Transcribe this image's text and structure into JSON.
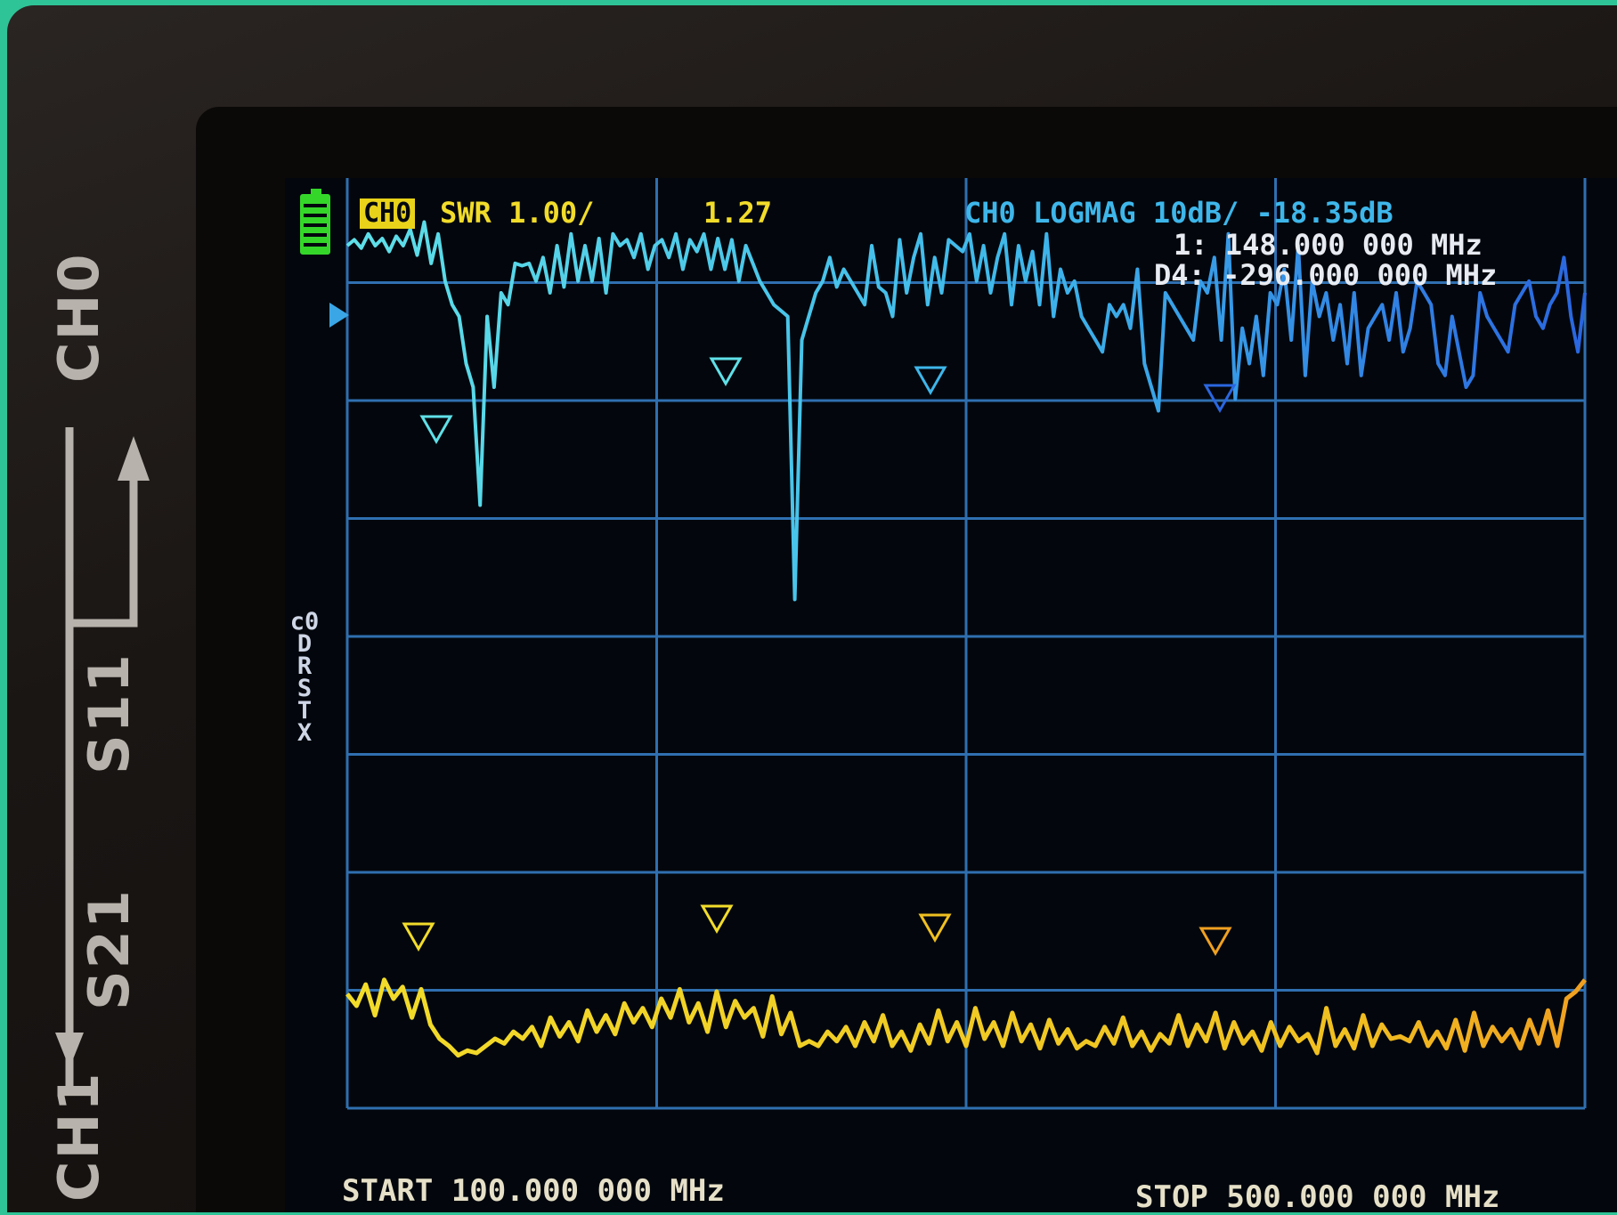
{
  "device_labels": {
    "ch0": "CH0",
    "s11": "S11",
    "s21": "S21",
    "ch1": "CH1"
  },
  "header": {
    "channel_badge": "CH0",
    "swr_trace": "SWR 1.00/",
    "swr_value": "1.27",
    "logmag_trace": "CH0 LOGMAG 10dB/ -18.35dB",
    "marker_1": "1: 148.000 000 MHz",
    "marker_delta": "D4: -296.000 000 MHz"
  },
  "status_column": [
    "c0",
    "D",
    "R",
    "S",
    "T",
    "X"
  ],
  "footer": {
    "start": "START 100.000 000 MHz",
    "stop": "STOP 500.000 000 MHz"
  },
  "colors": {
    "grid": "#2f6fb0",
    "trace_logmag_start": "#5fe0e8",
    "trace_logmag_end": "#2a66e0",
    "trace_swr": "#f2dc2a",
    "trace_swr_end": "#f0a020",
    "battery": "#35d62a"
  },
  "chart_data": {
    "type": "line",
    "x_range_mhz": [
      100,
      500
    ],
    "series": [
      {
        "name": "CH0 LOGMAG",
        "values": [
          2,
          2.5,
          1.8,
          3,
          2,
          2.6,
          1.5,
          2.8,
          2,
          3.4,
          1.2,
          4,
          0.5,
          3,
          -1,
          -3,
          -4,
          -8,
          -10,
          -20,
          -4,
          -10,
          -2,
          -3,
          0.5,
          0.3,
          0.5,
          -1,
          1,
          -2,
          2,
          -1.5,
          3,
          -1,
          2,
          -1,
          2.6,
          -2,
          3,
          2,
          2.5,
          1,
          3,
          0,
          2,
          2.5,
          1,
          3,
          0,
          2.5,
          1.5,
          3,
          0,
          2.6,
          0,
          2.5,
          -1,
          2,
          0.5,
          -1,
          -2,
          -3,
          -3.5,
          -4,
          -28,
          -6,
          -4,
          -2,
          -1,
          1,
          -1.5,
          0,
          -1,
          -2,
          -3,
          2,
          -1.5,
          -2,
          -4,
          2.5,
          -2,
          1,
          3,
          -3,
          1,
          -2,
          2.5,
          2,
          1.5,
          3,
          -1,
          2,
          -2,
          1,
          3,
          -3,
          2,
          -1,
          1.5,
          -3,
          3,
          -4,
          0,
          -2,
          -1,
          -4,
          -5,
          -6,
          -7,
          -3,
          -4,
          -3,
          -5,
          0,
          -8,
          -10,
          -12,
          -2,
          -3,
          -4,
          -5,
          -6,
          -1,
          -2,
          1,
          -6,
          3,
          -11,
          -5,
          -8,
          -4,
          -9,
          -2,
          -3,
          0,
          -6,
          2,
          -9,
          -1,
          -4,
          -2,
          -6,
          -3,
          -8,
          -2,
          -9,
          -5,
          -4,
          -3,
          -6,
          -2,
          -7,
          -5,
          -1,
          -2,
          -3,
          -8,
          -9,
          -4,
          -7,
          -10,
          -9,
          -2,
          -4,
          -5,
          -6,
          -7,
          -3,
          -2,
          -1,
          -4,
          -5,
          -3,
          -2,
          1,
          -4,
          -7,
          -2
        ]
      },
      {
        "name": "SWR",
        "values": [
          1.22,
          1.17,
          1.26,
          1.13,
          1.28,
          1.2,
          1.25,
          1.12,
          1.24,
          1.09,
          1.03,
          1.0,
          0.96,
          0.98,
          0.97,
          1.0,
          1.03,
          1.01,
          1.06,
          1.03,
          1.08,
          1.0,
          1.12,
          1.04,
          1.1,
          1.02,
          1.15,
          1.06,
          1.13,
          1.05,
          1.18,
          1.1,
          1.16,
          1.08,
          1.2,
          1.12,
          1.24,
          1.1,
          1.18,
          1.06,
          1.23,
          1.08,
          1.19,
          1.12,
          1.16,
          1.04,
          1.21,
          1.05,
          1.14,
          1.0,
          1.02,
          1.0,
          1.06,
          1.02,
          1.08,
          1.0,
          1.1,
          1.02,
          1.13,
          1.0,
          1.06,
          0.98,
          1.09,
          1.01,
          1.15,
          1.02,
          1.1,
          1.0,
          1.16,
          1.03,
          1.1,
          1.0,
          1.14,
          1.02,
          1.09,
          0.99,
          1.11,
          1.01,
          1.07,
          0.99,
          1.02,
          1.0,
          1.08,
          1.01,
          1.12,
          1.0,
          1.06,
          0.98,
          1.05,
          1.01,
          1.13,
          1.0,
          1.09,
          1.02,
          1.14,
          0.99,
          1.1,
          1.01,
          1.06,
          0.98,
          1.1,
          1.0,
          1.08,
          1.02,
          1.05,
          0.97,
          1.16,
          1.0,
          1.07,
          0.99,
          1.13,
          1.0,
          1.09,
          1.03,
          1.04,
          1.02,
          1.1,
          1.0,
          1.06,
          0.99,
          1.11,
          0.98,
          1.14,
          1.0,
          1.08,
          1.02,
          1.07,
          0.99,
          1.11,
          1.01,
          1.15,
          1.0,
          1.2,
          1.23,
          1.28
        ]
      }
    ]
  }
}
